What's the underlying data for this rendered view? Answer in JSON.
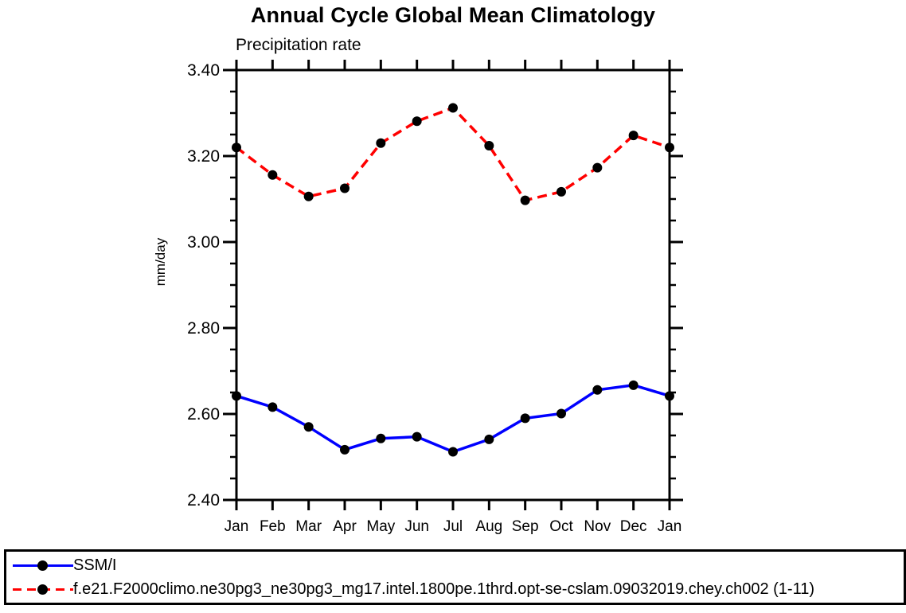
{
  "header": {
    "title": "Annual Cycle Global Mean Climatology",
    "subtitle": "Precipitation rate"
  },
  "colors": {
    "background": "#ffffff",
    "axis": "#000000",
    "text": "#000000",
    "ssmi_line": "#0000ff",
    "model_line": "#ff0000",
    "marker": "#000000"
  },
  "chart_data": {
    "type": "line",
    "title": "Annual Cycle Global Mean Climatology",
    "subtitle": "Precipitation rate",
    "xlabel": "",
    "ylabel": "mm/day",
    "categories": [
      "Jan",
      "Feb",
      "Mar",
      "Apr",
      "May",
      "Jun",
      "Jul",
      "Aug",
      "Sep",
      "Oct",
      "Nov",
      "Dec",
      "Jan"
    ],
    "ylim": [
      2.4,
      3.4
    ],
    "ytick_major_step": 0.2,
    "ytick_minor_step": 0.05,
    "ytick_labels": [
      "2.40",
      "2.60",
      "2.80",
      "3.00",
      "3.20",
      "3.40"
    ],
    "grid": false,
    "legend_position": "bottom-box-full-width",
    "series": [
      {
        "name": "SSM/I",
        "color": "#0000ff",
        "line_style": "solid",
        "marker": "filled-circle",
        "marker_color": "#000000",
        "values": [
          2.642,
          2.616,
          2.57,
          2.517,
          2.543,
          2.547,
          2.512,
          2.541,
          2.59,
          2.601,
          2.656,
          2.667,
          2.642
        ]
      },
      {
        "name": "f.e21.F2000climo.ne30pg3_ne30pg3_mg17.intel.1800pe.1thrd.opt-se-cslam.09032019.chey.ch002 (1-11)",
        "color": "#ff0000",
        "line_style": "dashed",
        "marker": "filled-circle",
        "marker_color": "#000000",
        "values": [
          3.22,
          3.156,
          3.106,
          3.125,
          3.23,
          3.281,
          3.312,
          3.224,
          3.097,
          3.117,
          3.173,
          3.248,
          3.22
        ]
      }
    ]
  }
}
